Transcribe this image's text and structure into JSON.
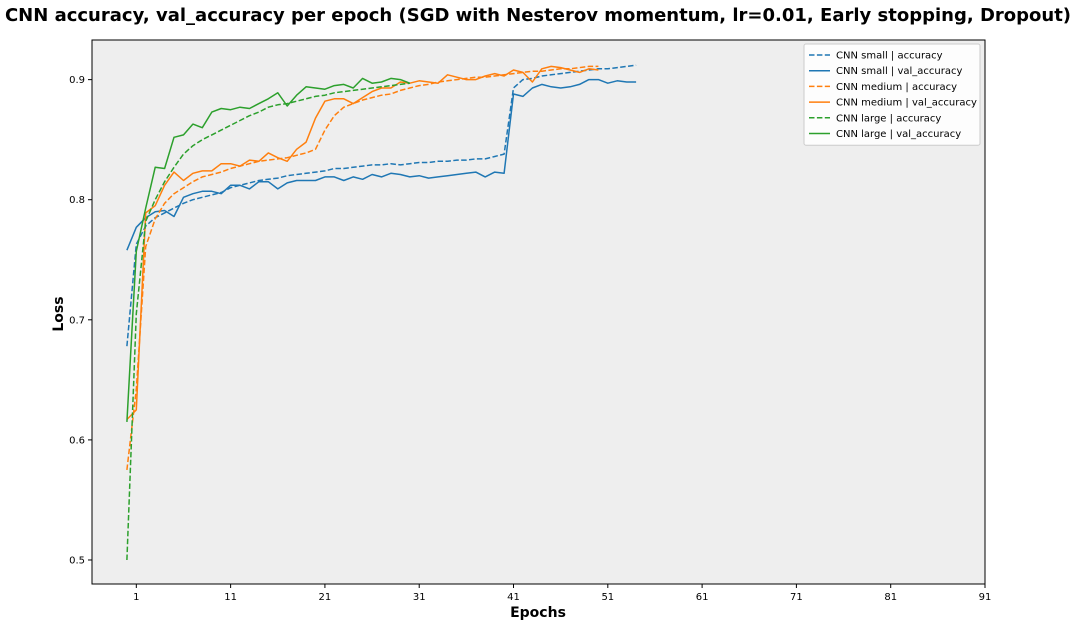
{
  "chart_data": {
    "type": "line",
    "title": "CNN accuracy, val_accuracy per epoch (SGD with Nesterov momentum, lr=0.01, Early stopping, Dropout)",
    "xlabel": "Epochs",
    "ylabel": "Loss",
    "xlim": [
      -3.7,
      91
    ],
    "ylim": [
      0.48,
      0.933
    ],
    "xticks": [
      1,
      11,
      21,
      31,
      41,
      51,
      61,
      71,
      81,
      91
    ],
    "yticks": [
      0.5,
      0.6,
      0.7,
      0.8,
      0.9
    ],
    "ytick_labels": [
      "0.5",
      "0.6",
      "0.7",
      "0.8",
      "0.9"
    ],
    "grid": false,
    "background": "#eeeeee",
    "legend_placement": "top-right",
    "series": [
      {
        "name": "CNN small | accuracy",
        "color": "#1f77b4",
        "dash": "dashed",
        "x": [
          0,
          1,
          2,
          3,
          4,
          5,
          6,
          7,
          8,
          9,
          10,
          11,
          12,
          13,
          14,
          15,
          16,
          17,
          18,
          19,
          20,
          21,
          22,
          23,
          24,
          25,
          26,
          27,
          28,
          29,
          30,
          31,
          32,
          33,
          34,
          35,
          36,
          37,
          38,
          39,
          40,
          41,
          42,
          43,
          44,
          45,
          46,
          47,
          48,
          49,
          50,
          51,
          52,
          53,
          54
        ],
        "y": [
          0.678,
          0.763,
          0.778,
          0.785,
          0.789,
          0.793,
          0.797,
          0.8,
          0.802,
          0.804,
          0.806,
          0.81,
          0.812,
          0.814,
          0.816,
          0.817,
          0.818,
          0.82,
          0.821,
          0.822,
          0.823,
          0.824,
          0.826,
          0.826,
          0.827,
          0.828,
          0.829,
          0.829,
          0.83,
          0.829,
          0.83,
          0.831,
          0.831,
          0.832,
          0.832,
          0.833,
          0.833,
          0.834,
          0.834,
          0.836,
          0.838,
          0.893,
          0.9,
          0.901,
          0.903,
          0.904,
          0.905,
          0.906,
          0.907,
          0.908,
          0.909,
          0.909,
          0.91,
          0.911,
          0.912
        ]
      },
      {
        "name": "CNN small | val_accuracy",
        "color": "#1f77b4",
        "dash": "solid",
        "x": [
          0,
          1,
          2,
          3,
          4,
          5,
          6,
          7,
          8,
          9,
          10,
          11,
          12,
          13,
          14,
          15,
          16,
          17,
          18,
          19,
          20,
          21,
          22,
          23,
          24,
          25,
          26,
          27,
          28,
          29,
          30,
          31,
          32,
          33,
          34,
          35,
          36,
          37,
          38,
          39,
          40,
          41,
          42,
          43,
          44,
          45,
          46,
          47,
          48,
          49,
          50,
          51,
          52,
          53,
          54
        ],
        "y": [
          0.758,
          0.777,
          0.785,
          0.79,
          0.791,
          0.786,
          0.802,
          0.805,
          0.807,
          0.807,
          0.805,
          0.812,
          0.812,
          0.809,
          0.815,
          0.815,
          0.809,
          0.814,
          0.816,
          0.816,
          0.816,
          0.819,
          0.819,
          0.816,
          0.819,
          0.817,
          0.821,
          0.819,
          0.822,
          0.821,
          0.819,
          0.82,
          0.818,
          0.819,
          0.82,
          0.821,
          0.822,
          0.823,
          0.819,
          0.823,
          0.822,
          0.888,
          0.886,
          0.893,
          0.896,
          0.894,
          0.893,
          0.894,
          0.896,
          0.9,
          0.9,
          0.897,
          0.899,
          0.898,
          0.898
        ]
      },
      {
        "name": "CNN medium | accuracy",
        "color": "#ff7f0e",
        "dash": "dashed",
        "x": [
          0,
          1,
          2,
          3,
          4,
          5,
          6,
          7,
          8,
          9,
          10,
          11,
          12,
          13,
          14,
          15,
          16,
          17,
          18,
          19,
          20,
          21,
          22,
          23,
          24,
          25,
          26,
          27,
          28,
          29,
          30,
          31,
          32,
          33,
          34,
          35,
          36,
          37,
          38,
          39,
          40,
          41,
          42,
          43,
          44,
          45,
          46,
          47,
          48,
          49,
          50
        ],
        "y": [
          0.575,
          0.642,
          0.761,
          0.784,
          0.797,
          0.805,
          0.81,
          0.815,
          0.819,
          0.821,
          0.823,
          0.826,
          0.828,
          0.83,
          0.832,
          0.833,
          0.834,
          0.835,
          0.837,
          0.839,
          0.842,
          0.858,
          0.87,
          0.877,
          0.88,
          0.883,
          0.885,
          0.887,
          0.888,
          0.891,
          0.893,
          0.895,
          0.896,
          0.898,
          0.899,
          0.9,
          0.901,
          0.902,
          0.902,
          0.903,
          0.904,
          0.905,
          0.906,
          0.907,
          0.907,
          0.908,
          0.909,
          0.909,
          0.91,
          0.911,
          0.911
        ]
      },
      {
        "name": "CNN medium | val_accuracy",
        "color": "#ff7f0e",
        "dash": "solid",
        "x": [
          0,
          1,
          2,
          3,
          4,
          5,
          6,
          7,
          8,
          9,
          10,
          11,
          12,
          13,
          14,
          15,
          16,
          17,
          18,
          19,
          20,
          21,
          22,
          23,
          24,
          25,
          26,
          27,
          28,
          29,
          30,
          31,
          32,
          33,
          34,
          35,
          36,
          37,
          38,
          39,
          40,
          41,
          42,
          43,
          44,
          45,
          46,
          47,
          48,
          49,
          50
        ],
        "y": [
          0.617,
          0.625,
          0.789,
          0.795,
          0.812,
          0.823,
          0.816,
          0.822,
          0.824,
          0.824,
          0.83,
          0.83,
          0.828,
          0.833,
          0.832,
          0.839,
          0.835,
          0.832,
          0.842,
          0.848,
          0.868,
          0.882,
          0.884,
          0.884,
          0.88,
          0.885,
          0.89,
          0.893,
          0.893,
          0.898,
          0.897,
          0.899,
          0.898,
          0.897,
          0.904,
          0.902,
          0.9,
          0.9,
          0.903,
          0.905,
          0.903,
          0.908,
          0.906,
          0.898,
          0.909,
          0.911,
          0.91,
          0.908,
          0.906,
          0.909,
          0.908
        ]
      },
      {
        "name": "CNN large | accuracy",
        "color": "#2ca02c",
        "dash": "dashed",
        "x": [
          0,
          1,
          2,
          3,
          4,
          5,
          6,
          7,
          8,
          9,
          10,
          11,
          12,
          13,
          14,
          15,
          16,
          17,
          18,
          19,
          20,
          21,
          22,
          23,
          24,
          25,
          26,
          27,
          28,
          29,
          30
        ],
        "y": [
          0.5,
          0.705,
          0.782,
          0.8,
          0.815,
          0.827,
          0.838,
          0.845,
          0.85,
          0.854,
          0.858,
          0.862,
          0.866,
          0.87,
          0.873,
          0.877,
          0.879,
          0.88,
          0.882,
          0.884,
          0.886,
          0.887,
          0.889,
          0.89,
          0.891,
          0.892,
          0.893,
          0.894,
          0.895,
          0.896,
          0.897
        ]
      },
      {
        "name": "CNN large | val_accuracy",
        "color": "#2ca02c",
        "dash": "solid",
        "x": [
          0,
          1,
          2,
          3,
          4,
          5,
          6,
          7,
          8,
          9,
          10,
          11,
          12,
          13,
          14,
          15,
          16,
          17,
          18,
          19,
          20,
          21,
          22,
          23,
          24,
          25,
          26,
          27,
          28,
          29,
          30
        ],
        "y": [
          0.615,
          0.757,
          0.793,
          0.827,
          0.826,
          0.852,
          0.854,
          0.863,
          0.86,
          0.873,
          0.876,
          0.875,
          0.877,
          0.876,
          0.88,
          0.884,
          0.889,
          0.878,
          0.887,
          0.894,
          0.893,
          0.892,
          0.895,
          0.896,
          0.893,
          0.901,
          0.897,
          0.898,
          0.901,
          0.9,
          0.897
        ]
      }
    ]
  }
}
